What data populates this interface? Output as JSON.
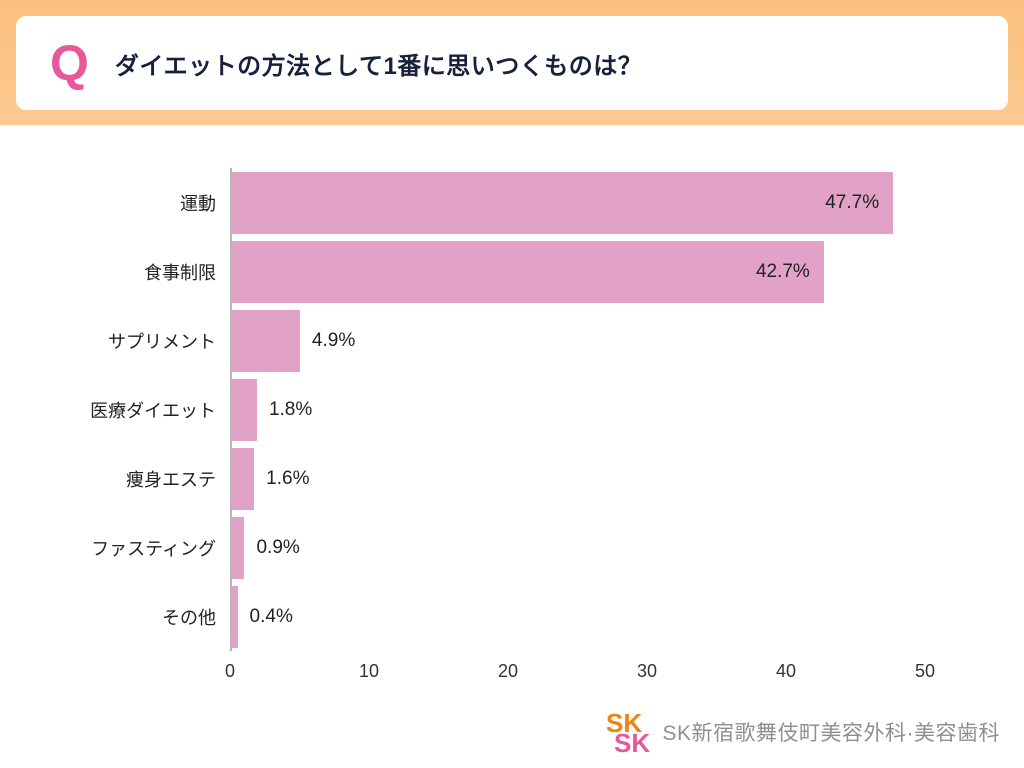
{
  "header": {
    "q_mark": "Q",
    "question": "ダイエットの方法として1番に思いつくものは？"
  },
  "chart_data": {
    "type": "bar",
    "orientation": "horizontal",
    "title": "ダイエットの方法として1番に思いつくものは？",
    "categories": [
      "運動",
      "食事制限",
      "サプリメント",
      "医療ダイエット",
      "痩身エステ",
      "ファスティング",
      "その他"
    ],
    "values": [
      47.7,
      42.7,
      4.9,
      1.8,
      1.6,
      0.9,
      0.4
    ],
    "value_labels": [
      "47.7%",
      "42.7%",
      "4.9%",
      "1.8%",
      "1.6%",
      "0.9%",
      "0.4%"
    ],
    "x_ticks": [
      0,
      10,
      20,
      30,
      40,
      50
    ],
    "xlim": [
      0,
      50
    ],
    "xlabel": "",
    "ylabel": "",
    "grid": false,
    "legend": false,
    "bar_color": "#e2a2c8",
    "inside_label_threshold": 15
  },
  "footer": {
    "logo_mark": "SK",
    "logo_text": "SK新宿歌舞伎町美容外科·美容歯科"
  },
  "colors": {
    "accent_pink": "#e8579b",
    "band_orange": "#fbc07c",
    "bar_pink": "#e2a2c8",
    "text_dark": "#17213c",
    "logo_orange": "#f08318",
    "logo_gray": "#8f8f8f"
  }
}
